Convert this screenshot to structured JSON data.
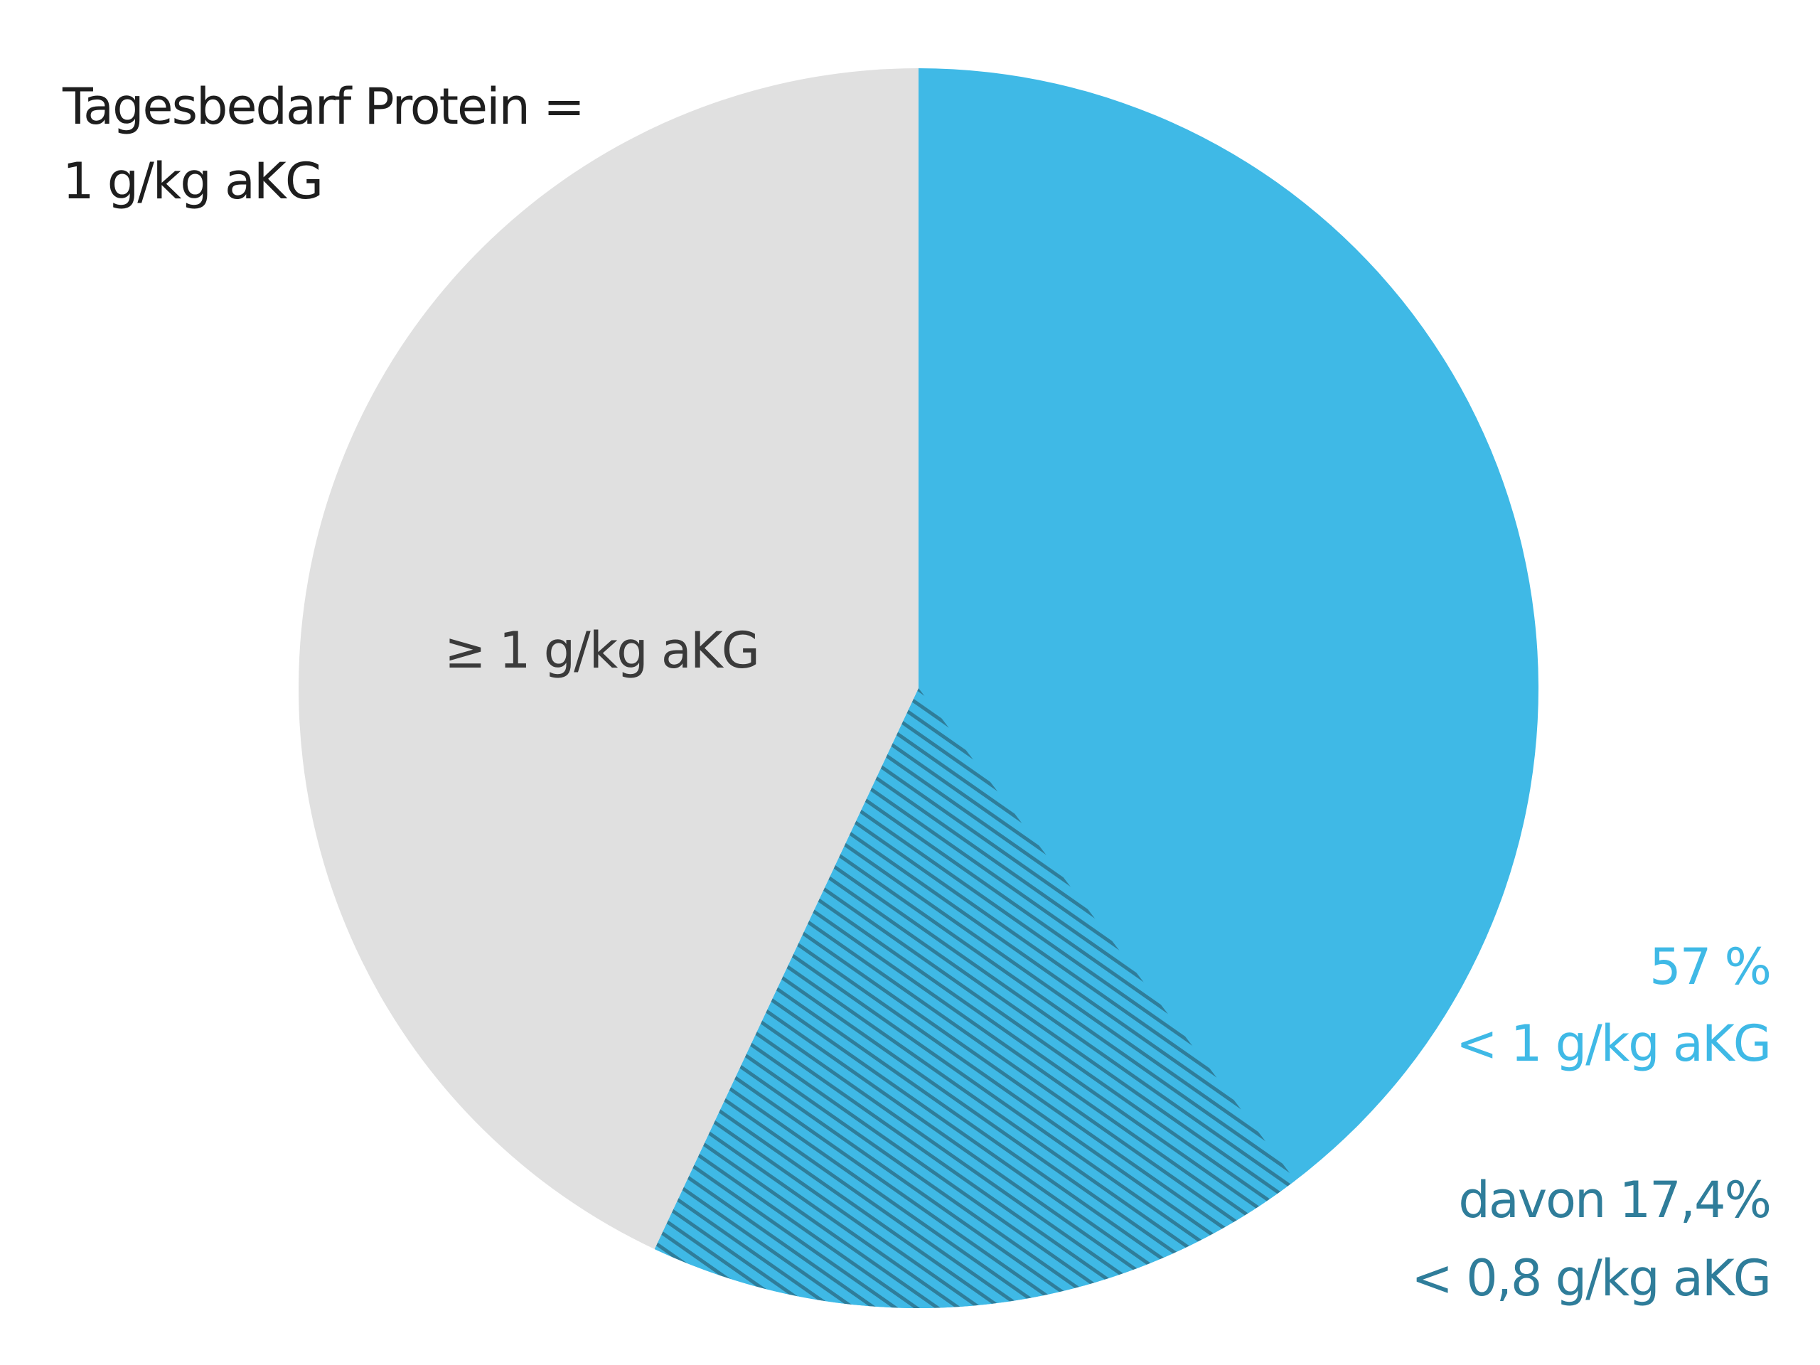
{
  "chart_data": {
    "type": "pie",
    "title": [
      "Tagesbedarf Protein =",
      "1 g/kg aKG"
    ],
    "slices": [
      {
        "label": "≥ 1 g/kg aKG",
        "value": 43,
        "color": "#e0e0e0",
        "text_color": "#3a3a3a"
      },
      {
        "label": [
          "57 %",
          "< 1 g/kg aKG"
        ],
        "value": 57,
        "color": "#3fb9e6",
        "text_color": "#3fb9e6",
        "sub_slice": {
          "label": [
            "davon 17,4%",
            "< 0,8 g/kg aKG"
          ],
          "value": 17.4,
          "pattern": "diagonal-hatch",
          "hatch_color": "#2f7d9a",
          "text_color": "#2f7d9a"
        }
      }
    ],
    "start_angle_deg": 0,
    "direction": "clockwise"
  }
}
